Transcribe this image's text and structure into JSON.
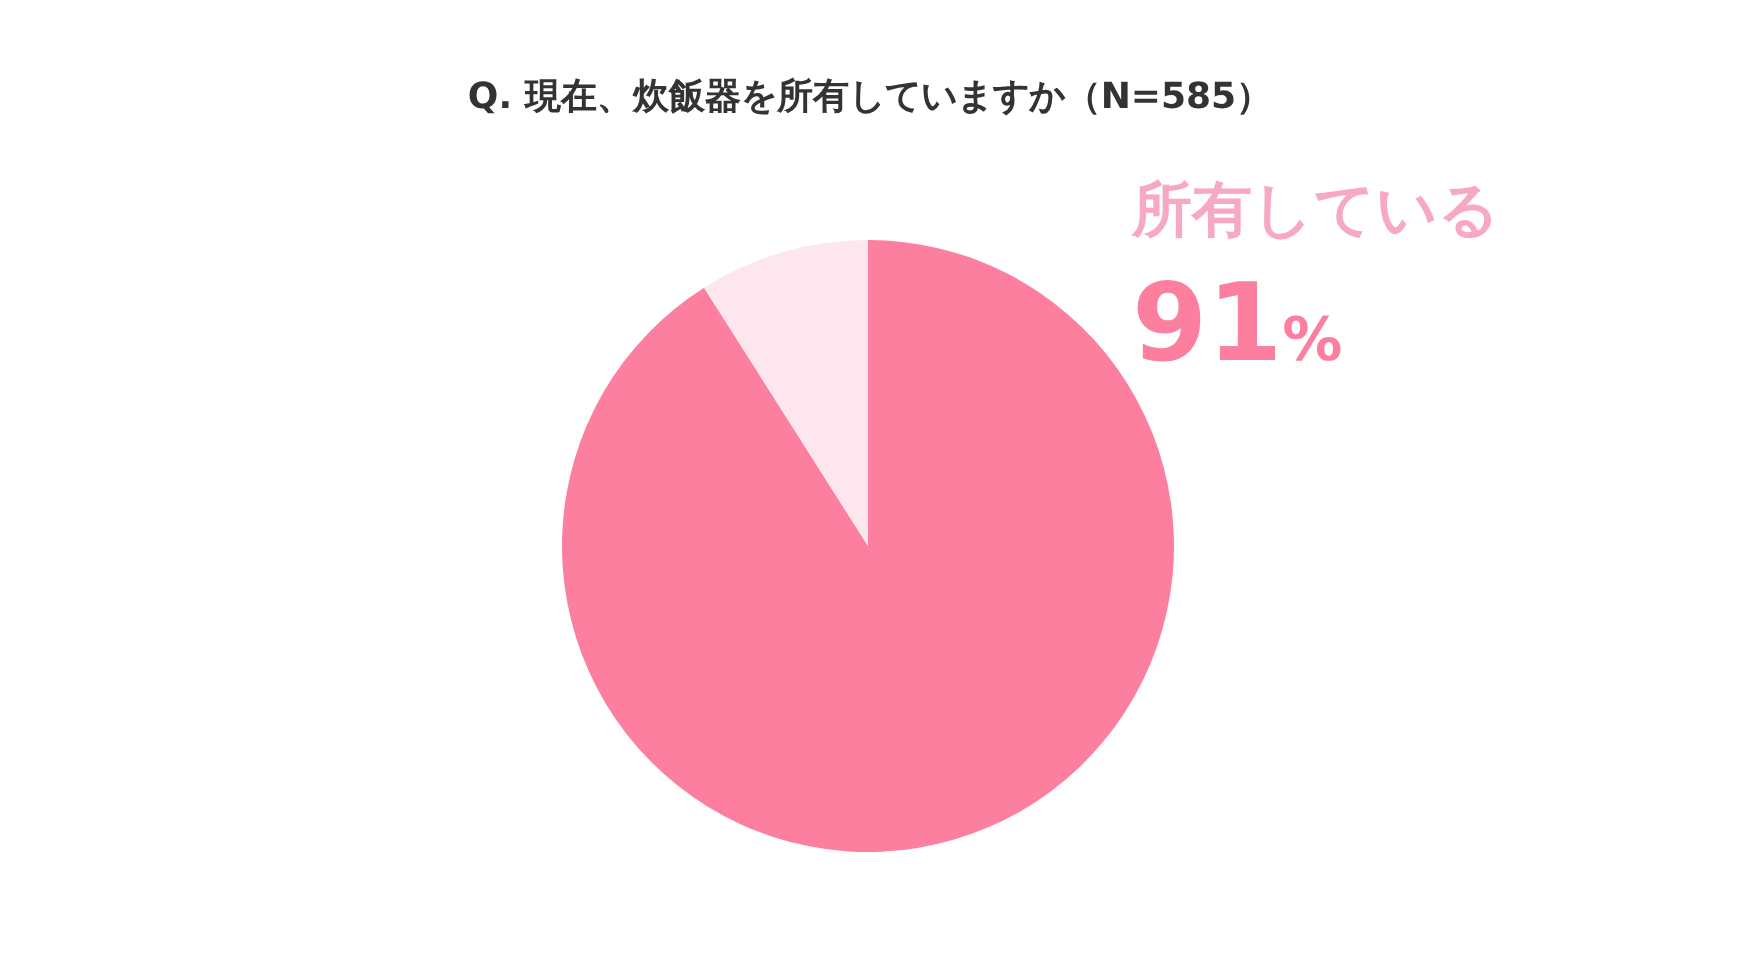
{
  "chart_data": {
    "type": "pie",
    "title": "Q. 現在、炊飯器を所有していますか（N=585）",
    "categories": [
      "所有している",
      null
    ],
    "values": [
      91,
      9
    ],
    "colors": [
      "#fc7fa0",
      "#fde6ee"
    ],
    "value_labels": [
      "91%",
      null
    ]
  }
}
